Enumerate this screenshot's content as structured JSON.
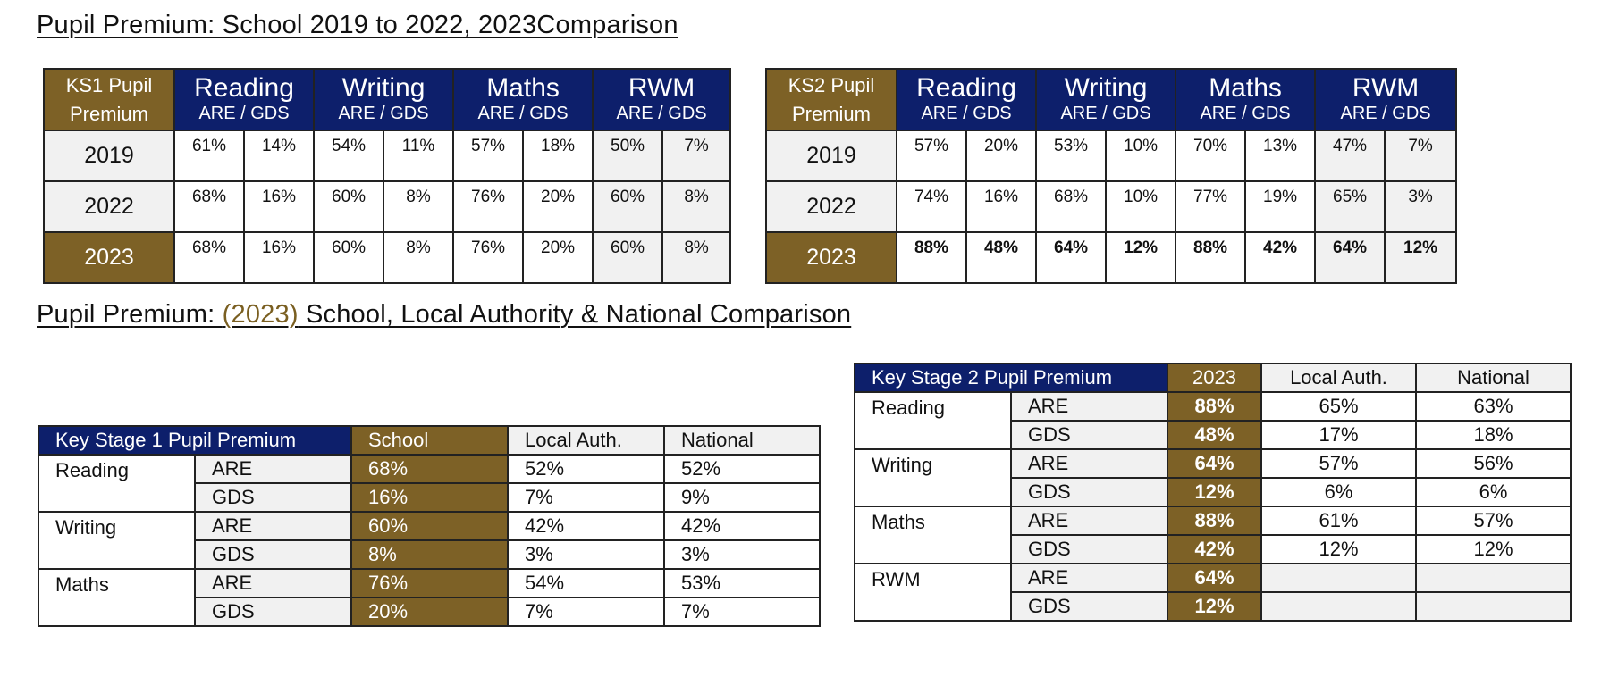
{
  "headings": {
    "top": "Pupil Premium: School 2019 to 2022, 2023Comparison",
    "bottom_pre": "Pupil Premium: ",
    "bottom_year": "(2023)",
    "bottom_post": " School, Local Authority & National Comparison"
  },
  "subject_sub": "ARE / GDS",
  "ks1_trend": {
    "title_line1": "KS1 Pupil",
    "title_line2": "Premium",
    "subjects": [
      "Reading",
      "Writing",
      "Maths",
      "RWM"
    ],
    "rows": [
      {
        "year": "2019",
        "values": [
          "61%",
          "14%",
          "54%",
          "11%",
          "57%",
          "18%",
          "50%",
          "7%"
        ]
      },
      {
        "year": "2022",
        "values": [
          "68%",
          "16%",
          "60%",
          "8%",
          "76%",
          "20%",
          "60%",
          "8%"
        ]
      },
      {
        "year": "2023",
        "values": [
          "68%",
          "16%",
          "60%",
          "8%",
          "76%",
          "20%",
          "60%",
          "8%"
        ]
      }
    ]
  },
  "ks2_trend": {
    "title_line1": "KS2 Pupil",
    "title_line2": "Premium",
    "subjects": [
      "Reading",
      "Writing",
      "Maths",
      "RWM"
    ],
    "rows": [
      {
        "year": "2019",
        "values": [
          "57%",
          "20%",
          "53%",
          "10%",
          "70%",
          "13%",
          "47%",
          "7%"
        ]
      },
      {
        "year": "2022",
        "values": [
          "74%",
          "16%",
          "68%",
          "10%",
          "77%",
          "19%",
          "65%",
          "3%"
        ]
      },
      {
        "year": "2023",
        "values": [
          "88%",
          "48%",
          "64%",
          "12%",
          "88%",
          "42%",
          "64%",
          "12%"
        ]
      }
    ]
  },
  "ks1_compare": {
    "title": "Key Stage 1 Pupil Premium",
    "headers": [
      "School",
      "Local Auth.",
      "National"
    ],
    "groups": [
      {
        "subject": "Reading",
        "rows": [
          {
            "measure": "ARE",
            "school": "68%",
            "la": "52%",
            "national": "52%"
          },
          {
            "measure": "GDS",
            "school": "16%",
            "la": "7%",
            "national": "9%"
          }
        ]
      },
      {
        "subject": "Writing",
        "rows": [
          {
            "measure": "ARE",
            "school": "60%",
            "la": "42%",
            "national": "42%"
          },
          {
            "measure": "GDS",
            "school": "8%",
            "la": "3%",
            "national": "3%"
          }
        ]
      },
      {
        "subject": "Maths",
        "rows": [
          {
            "measure": "ARE",
            "school": "76%",
            "la": "54%",
            "national": "53%"
          },
          {
            "measure": "GDS",
            "school": "20%",
            "la": "7%",
            "national": "7%"
          }
        ]
      }
    ]
  },
  "ks2_compare": {
    "title": "Key Stage 2  Pupil Premium",
    "headers": [
      "2023",
      "Local Auth.",
      "National"
    ],
    "groups": [
      {
        "subject": "Reading",
        "rows": [
          {
            "measure": "ARE",
            "school": "88%",
            "la": "65%",
            "national": "63%"
          },
          {
            "measure": "GDS",
            "school": "48%",
            "la": "17%",
            "national": "18%"
          }
        ]
      },
      {
        "subject": "Writing",
        "rows": [
          {
            "measure": "ARE",
            "school": "64%",
            "la": "57%",
            "national": "56%"
          },
          {
            "measure": "GDS",
            "school": "12%",
            "la": "6%",
            "national": "6%"
          }
        ]
      },
      {
        "subject": "Maths",
        "rows": [
          {
            "measure": "ARE",
            "school": "88%",
            "la": "61%",
            "national": "57%"
          },
          {
            "measure": "GDS",
            "school": "42%",
            "la": "12%",
            "national": "12%"
          }
        ]
      },
      {
        "subject": "RWM",
        "rows": [
          {
            "measure": "ARE",
            "school": "64%",
            "la": "",
            "national": ""
          },
          {
            "measure": "GDS",
            "school": "12%",
            "la": "",
            "national": ""
          }
        ]
      }
    ]
  },
  "colors": {
    "navy": "#0d1f6b",
    "gold": "#7d6126",
    "light_grey": "#f1f1f1"
  }
}
